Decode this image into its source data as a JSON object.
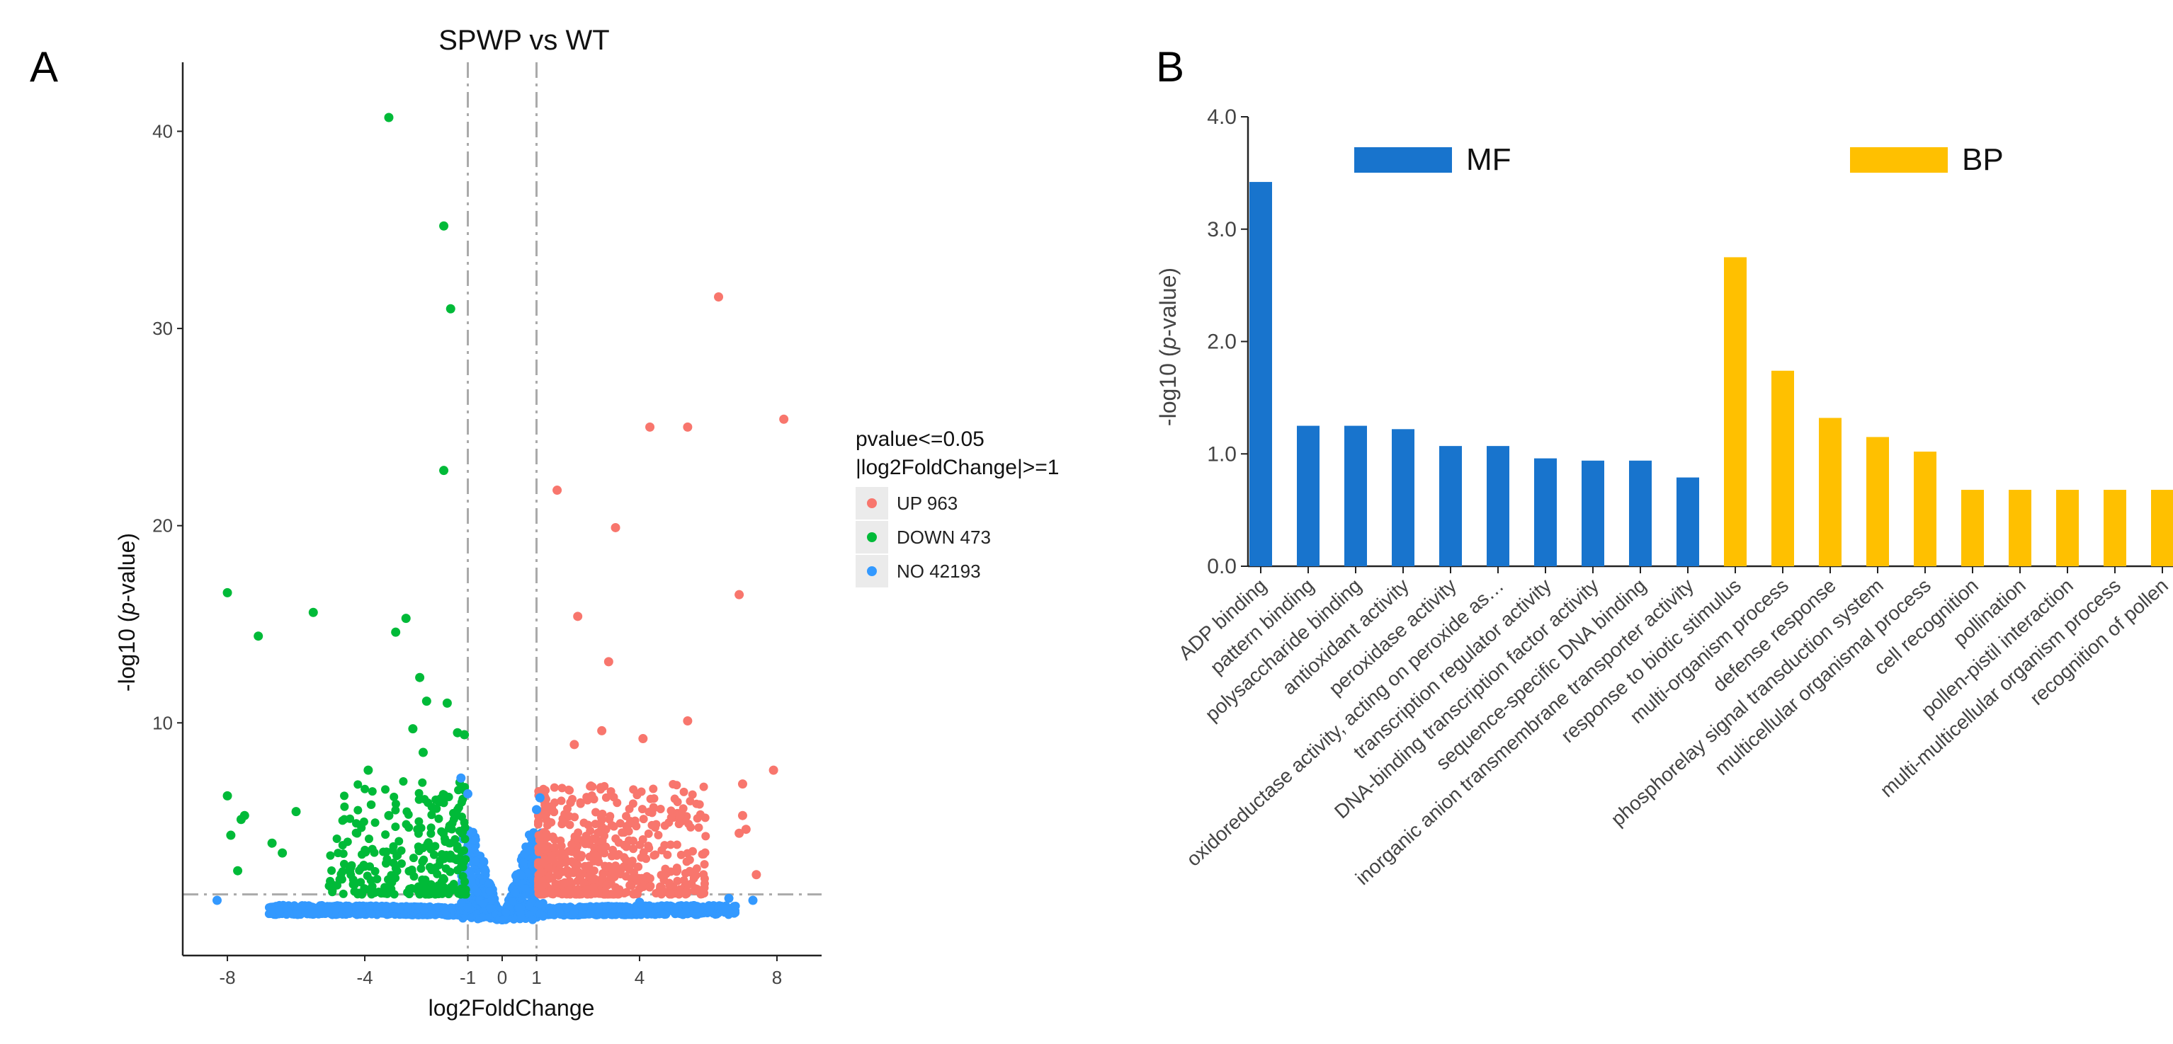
{
  "panel_a": {
    "letter": "A"
  },
  "panel_b": {
    "letter": "B"
  },
  "chart_data": [
    {
      "type": "scatter",
      "title": "SPWP vs WT",
      "xlabel": "log2FoldChange",
      "ylabel_prefix": "-log10 (",
      "ylabel_italic": "p",
      "ylabel_suffix": "-value)",
      "xlim": [
        -9.3,
        9.3
      ],
      "ylim": [
        -1.8,
        43.5
      ],
      "x_ticks": [
        -8,
        -4,
        -1,
        0,
        1,
        4,
        8
      ],
      "x_tick_labels": [
        "-8",
        "-4",
        "-1",
        "0",
        "1",
        "4",
        "8"
      ],
      "y_ticks": [
        10,
        20,
        30,
        40
      ],
      "y_tick_labels": [
        "10",
        "20",
        "30",
        "40"
      ],
      "thresholds": {
        "x": [
          -1,
          1
        ],
        "y": 1.3
      },
      "grid": false,
      "legend": {
        "placement": "right",
        "title_line1": "pvalue<=0.05",
        "title_line2": "|log2FoldChange|>=1",
        "entries": [
          {
            "label": "UP 963",
            "color": "#f8766d"
          },
          {
            "label": "DOWN 473",
            "color": "#00ba38"
          },
          {
            "label": "NO 42193",
            "color": "#3399ff"
          }
        ]
      },
      "series": [
        {
          "name": "UP 963",
          "color": "#f8766d",
          "points": [
            [
              6.3,
              31.6
            ],
            [
              8.2,
              25.4
            ],
            [
              4.3,
              25.0
            ],
            [
              5.4,
              25.0
            ],
            [
              1.6,
              21.8
            ],
            [
              3.3,
              19.9
            ],
            [
              6.9,
              16.5
            ],
            [
              2.2,
              15.4
            ],
            [
              3.1,
              13.1
            ],
            [
              2.9,
              9.6
            ],
            [
              4.1,
              9.2
            ],
            [
              5.4,
              10.1
            ],
            [
              2.1,
              8.9
            ],
            [
              7.9,
              7.6
            ],
            [
              7.0,
              6.9
            ],
            [
              7.0,
              5.3
            ],
            [
              7.1,
              4.6
            ],
            [
              6.9,
              4.4
            ],
            [
              7.4,
              2.3
            ]
          ]
        },
        {
          "name": "DOWN 473",
          "color": "#00ba38",
          "points": [
            [
              -3.3,
              40.7
            ],
            [
              -1.7,
              35.2
            ],
            [
              -1.5,
              31.0
            ],
            [
              -1.7,
              22.8
            ],
            [
              -8.0,
              16.6
            ],
            [
              -5.5,
              15.6
            ],
            [
              -2.8,
              15.3
            ],
            [
              -3.1,
              14.6
            ],
            [
              -7.1,
              14.4
            ],
            [
              -2.4,
              12.3
            ],
            [
              -2.2,
              11.1
            ],
            [
              -1.6,
              11.0
            ],
            [
              -2.6,
              9.7
            ],
            [
              -1.3,
              9.5
            ],
            [
              -1.1,
              9.4
            ],
            [
              -2.3,
              8.5
            ],
            [
              -3.9,
              7.6
            ],
            [
              -3.3,
              5.3
            ],
            [
              -7.5,
              5.3
            ],
            [
              -7.6,
              5.1
            ],
            [
              -8.0,
              6.3
            ],
            [
              -6.0,
              5.5
            ],
            [
              -7.9,
              4.3
            ],
            [
              -6.7,
              3.9
            ],
            [
              -6.4,
              3.4
            ],
            [
              -7.7,
              2.5
            ]
          ]
        },
        {
          "name": "NO 42193",
          "color": "#3399ff",
          "points": [
            [
              -8.3,
              1.0
            ],
            [
              -1.2,
              7.2
            ],
            [
              -1.0,
              6.4
            ],
            [
              1.1,
              6.2
            ],
            [
              1.0,
              5.6
            ],
            [
              6.6,
              1.1
            ],
            [
              7.3,
              1.0
            ],
            [
              4.0,
              0.9
            ]
          ]
        }
      ]
    },
    {
      "type": "bar",
      "ylabel_prefix": "-log10 (",
      "ylabel_italic": "p",
      "ylabel_suffix": "-value)",
      "ylim": [
        0,
        4.0
      ],
      "y_ticks": [
        0,
        1,
        2,
        3,
        4
      ],
      "y_tick_labels": [
        "0.0",
        "1.0",
        "2.0",
        "3.0",
        "4.0"
      ],
      "legend": {
        "placement": "top",
        "entries": [
          {
            "label": "MF",
            "color": "#1874cd"
          },
          {
            "label": "BP",
            "color": "#ffc000"
          }
        ]
      },
      "categories": [
        "ADP binding",
        "pattern binding",
        "polysaccharide binding",
        "antioxidant activity",
        "peroxidase activity",
        "oxidoreductase activity, acting on peroxide as…",
        "transcription regulator activity",
        "DNA-binding transcription factor activity",
        "sequence-specific DNA binding",
        "inorganic anion transmembrane transporter activity",
        "response to biotic stimulus",
        "multi-organism process",
        "defense response",
        "phosphorelay signal transduction system",
        "multicellular organismal process",
        "cell recognition",
        "pollination",
        "pollen-pistil interaction",
        "multi-multicellular organism process",
        "recognition of pollen"
      ],
      "values": [
        3.42,
        1.25,
        1.25,
        1.22,
        1.07,
        1.07,
        0.96,
        0.94,
        0.94,
        0.79,
        2.75,
        1.74,
        1.32,
        1.15,
        1.02,
        0.68,
        0.68,
        0.68,
        0.68,
        0.68
      ],
      "groups": [
        "MF",
        "MF",
        "MF",
        "MF",
        "MF",
        "MF",
        "MF",
        "MF",
        "MF",
        "MF",
        "BP",
        "BP",
        "BP",
        "BP",
        "BP",
        "BP",
        "BP",
        "BP",
        "BP",
        "BP"
      ]
    }
  ]
}
